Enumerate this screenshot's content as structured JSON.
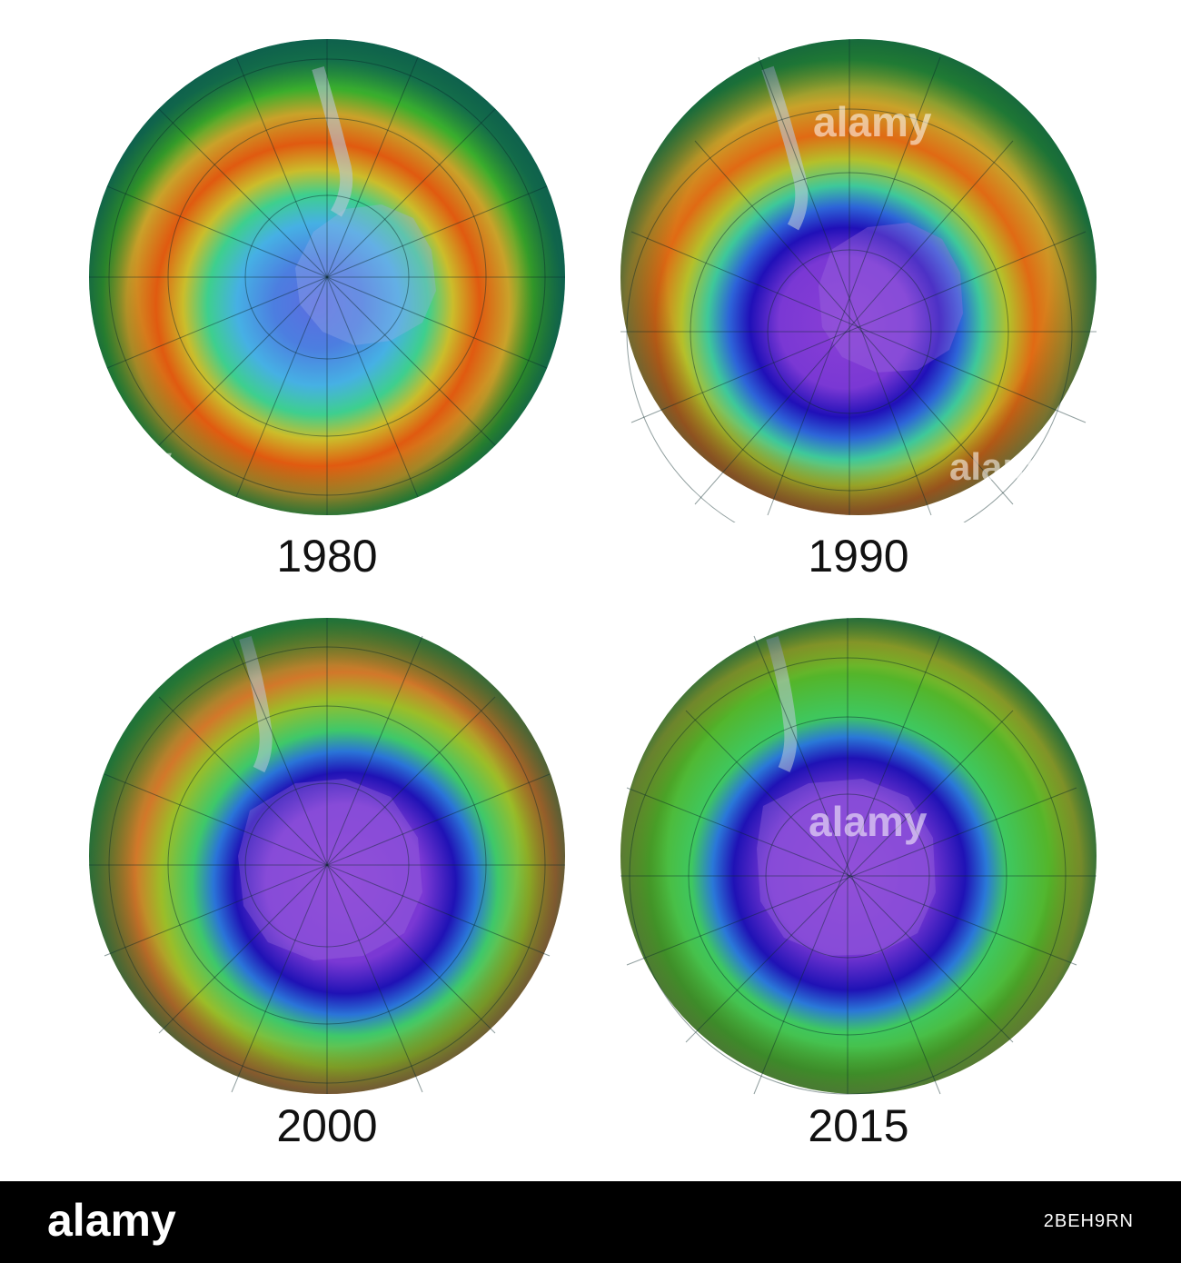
{
  "panels": [
    {
      "id": "1980",
      "label": "1980"
    },
    {
      "id": "1990",
      "label": "1990"
    },
    {
      "id": "2000",
      "label": "2000"
    },
    {
      "id": "2015",
      "label": "2015"
    }
  ],
  "watermark": "alamy",
  "footer": {
    "logo": "alamy",
    "image_id": "2BEH9RN",
    "background": "#000000",
    "text_color": "#ffffff"
  },
  "colors": {
    "ozone_low": "#8a3fd6",
    "ozone_hole": "#1f12b5",
    "ozone_mid": "#3fb8d8",
    "ozone_normal": "#2fae2a",
    "ozone_high": "#e05a10"
  }
}
